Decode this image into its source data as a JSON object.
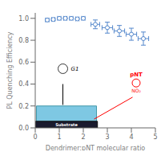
{
  "chart_data": {
    "type": "scatter",
    "xlabel": "Dendrimer:pNT molecular ratio",
    "ylabel": "PL Quenching Efficiency",
    "x": [
      0.5,
      0.75,
      1.0,
      1.25,
      1.5,
      1.75,
      2.0,
      2.5,
      3.0,
      3.5,
      4.0,
      4.5
    ],
    "values": [
      0.985,
      0.99,
      1.0,
      1.0,
      1.0,
      0.995,
      1.0,
      0.945,
      0.915,
      0.885,
      0.855,
      0.815
    ],
    "xerr": [
      0.07,
      0.07,
      0.07,
      0.07,
      0.07,
      0.07,
      0.07,
      0.18,
      0.22,
      0.22,
      0.22,
      0.22
    ],
    "yerr": [
      0.008,
      0.008,
      0.004,
      0.004,
      0.004,
      0.004,
      0.004,
      0.04,
      0.05,
      0.05,
      0.055,
      0.06
    ],
    "color": "#5588cc",
    "xlim": [
      0,
      5
    ],
    "ylim": [
      0,
      1.05
    ],
    "xticks": [
      0,
      1,
      2,
      3,
      4,
      5
    ],
    "yticks": [
      {
        "value": 0,
        "label": "0.0"
      },
      0.2,
      0.4,
      0.6,
      0.8,
      {
        "value": 1,
        "label": "1.0"
      }
    ],
    "annotations": [
      "Substrate",
      "G1",
      "pNT",
      "NO₂"
    ]
  }
}
